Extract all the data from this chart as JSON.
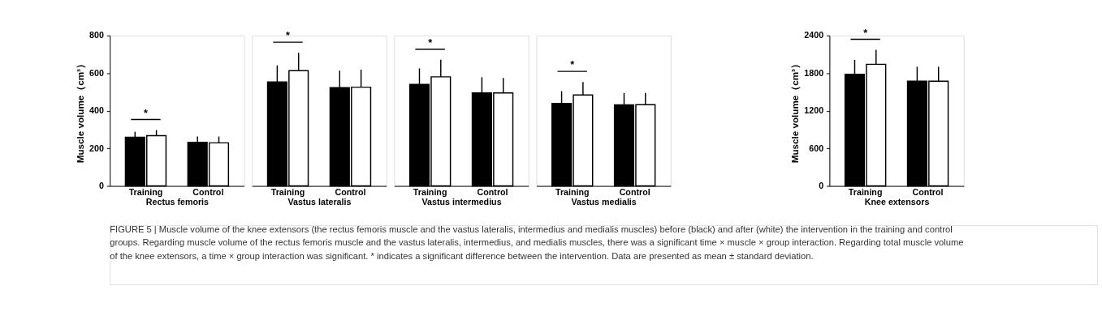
{
  "chart_data": [
    {
      "type": "bar",
      "categories": [
        "Training",
        "Control"
      ],
      "xlabel": "Rectus femoris",
      "ylabel": "Muscle volume（cm³）",
      "ylim": [
        0,
        800
      ],
      "yticks": [
        0,
        200,
        400,
        600,
        800
      ],
      "grid": false,
      "legend": false,
      "series": [
        {
          "color": "#000000",
          "values": [
            259,
            232
          ],
          "errors": [
            [
              259,
              288
            ],
            [
              232,
              263
            ]
          ]
        },
        {
          "color": "#ffffff",
          "values": [
            267,
            229
          ],
          "errors": [
            [
              267,
              297
            ],
            [
              229,
              263
            ]
          ]
        }
      ],
      "annotations": [
        "*",
        "FIGURE 5 | Muscle volume of the knee extensors (the rectus femoris muscle and the vastus lateralis, intermedius and medialis muscles) before (black) and after (white) the intervention in the training and control groups. Regarding muscle volume of the rectus femoris muscle and the vastus lateralis, intermedius, and medialis muscles, there was a significant time × muscle × group interaction. Regarding total muscle volume of the knee extensors, a time × group interaction was significant. * indicates a significant difference between the intervention. Data are presented as mean ± standard deviation."
      ]
    },
    {
      "type": "bar",
      "categories": [
        "Training",
        "Control"
      ],
      "xlabel": "Vastus lateralis",
      "ylim": [
        0,
        800
      ],
      "yticks": [
        0,
        200,
        400,
        600,
        800
      ],
      "tick_labels": "x",
      "grid": false,
      "legend": false,
      "series": [
        {
          "color": "#000000",
          "values": [
            553,
            522
          ],
          "errors": [
            [
              553,
              641
            ],
            [
              522,
              613
            ]
          ]
        },
        {
          "color": "#ffffff",
          "values": [
            613,
            525
          ],
          "errors": [
            [
              613,
              708
            ],
            [
              525,
              618
            ]
          ]
        }
      ],
      "annotations": [
        "*"
      ]
    },
    {
      "type": "bar",
      "categories": [
        "Training",
        "Control"
      ],
      "xlabel": "Vastus intermedius",
      "ylim": [
        0,
        800
      ],
      "yticks": [
        0,
        200,
        400,
        600,
        800
      ],
      "tick_labels": "x",
      "grid": false,
      "legend": false,
      "series": [
        {
          "color": "#000000",
          "values": [
            540,
            494
          ],
          "errors": [
            [
              540,
              625
            ],
            [
              494,
              578
            ]
          ]
        },
        {
          "color": "#ffffff",
          "values": [
            580,
            494
          ],
          "errors": [
            [
              580,
              671
            ],
            [
              494,
              574
            ]
          ]
        }
      ],
      "annotations": [
        "*"
      ]
    },
    {
      "type": "bar",
      "categories": [
        "Training",
        "Control"
      ],
      "xlabel": "Vastus medialis",
      "ylim": [
        0,
        800
      ],
      "yticks": [
        0,
        200,
        400,
        600,
        800
      ],
      "tick_labels": "x",
      "grid": false,
      "legend": false,
      "series": [
        {
          "color": "#000000",
          "values": [
            439,
            431
          ],
          "errors": [
            [
              439,
              504
            ],
            [
              431,
              494
            ]
          ]
        },
        {
          "color": "#ffffff",
          "values": [
            484,
            432
          ],
          "errors": [
            [
              484,
              553
            ],
            [
              432,
              494
            ]
          ]
        }
      ],
      "annotations": [
        "*"
      ]
    },
    {
      "type": "bar",
      "categories": [
        "Training",
        "Control"
      ],
      "xlabel": "Knee extensors",
      "ylabel": "Muscle volume（cm³）",
      "ylim": [
        0,
        2400
      ],
      "yticks": [
        0,
        600,
        1200,
        1800,
        2400
      ],
      "grid": false,
      "legend": false,
      "series": [
        {
          "color": "#000000",
          "values": [
            1780,
            1670
          ],
          "errors": [
            [
              1780,
              2010
            ],
            [
              1670,
              1900
            ]
          ]
        },
        {
          "color": "#ffffff",
          "values": [
            1940,
            1670
          ],
          "errors": [
            [
              1940,
              2170
            ],
            [
              1670,
              1900
            ]
          ]
        }
      ],
      "annotations": [
        "*"
      ]
    }
  ]
}
